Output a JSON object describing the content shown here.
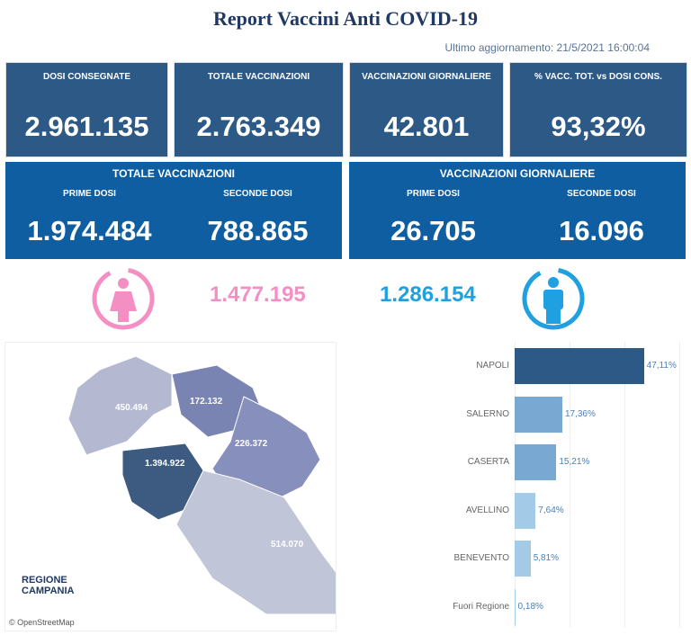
{
  "title": "Report Vaccini Anti COVID-19",
  "last_update": "Ultimo aggiornamento: 21/5/2021  16:00:04",
  "kpis": [
    {
      "label": "DOSI  CONSEGNATE",
      "value": "2.961.135"
    },
    {
      "label": "TOTALE VACCINAZIONI",
      "value": "2.763.349"
    },
    {
      "label": "VACCINAZIONI GIORNALIERE",
      "value": "42.801"
    },
    {
      "label": "% VACC. TOT. vs DOSI CONS.",
      "value": "93,32%"
    }
  ],
  "totale": {
    "title": "TOTALE VACCINAZIONI",
    "prime_label": "PRIME DOSI",
    "prime": "1.974.484",
    "seconde_label": "SECONDE DOSI",
    "seconde": "788.865"
  },
  "giornaliere": {
    "title": "VACCINAZIONI GIORNALIERE",
    "prime_label": "PRIME DOSI",
    "prime": "26.705",
    "seconde_label": "SECONDE DOSI",
    "seconde": "16.096"
  },
  "gender": {
    "female": "1.477.195",
    "male": "1.286.154",
    "female_color": "#f48fc4",
    "male_color": "#1fa0e0"
  },
  "map": {
    "values": [
      "450.494",
      "172.132",
      "226.372",
      "1.394.922",
      "514.070"
    ],
    "logo": "REGIONE CAMPANIA",
    "credit": "© OpenStreetMap"
  },
  "chart_data": {
    "type": "bar",
    "orientation": "horizontal",
    "categories": [
      "NAPOLI",
      "SALERNO",
      "CASERTA",
      "AVELLINO",
      "BENEVENTO",
      "Fuori Regione"
    ],
    "values": [
      47.11,
      17.36,
      15.21,
      7.64,
      5.81,
      0.18
    ],
    "labels": [
      "47,11%",
      "17,36%",
      "15,21%",
      "7,64%",
      "5,81%",
      "0,18%"
    ],
    "colors": [
      "#2d5986",
      "#79a9d2",
      "#79a9d2",
      "#a3cbe8",
      "#a3cbe8",
      "#a3cbe8"
    ],
    "xlim": [
      0,
      60
    ],
    "grid": true
  }
}
